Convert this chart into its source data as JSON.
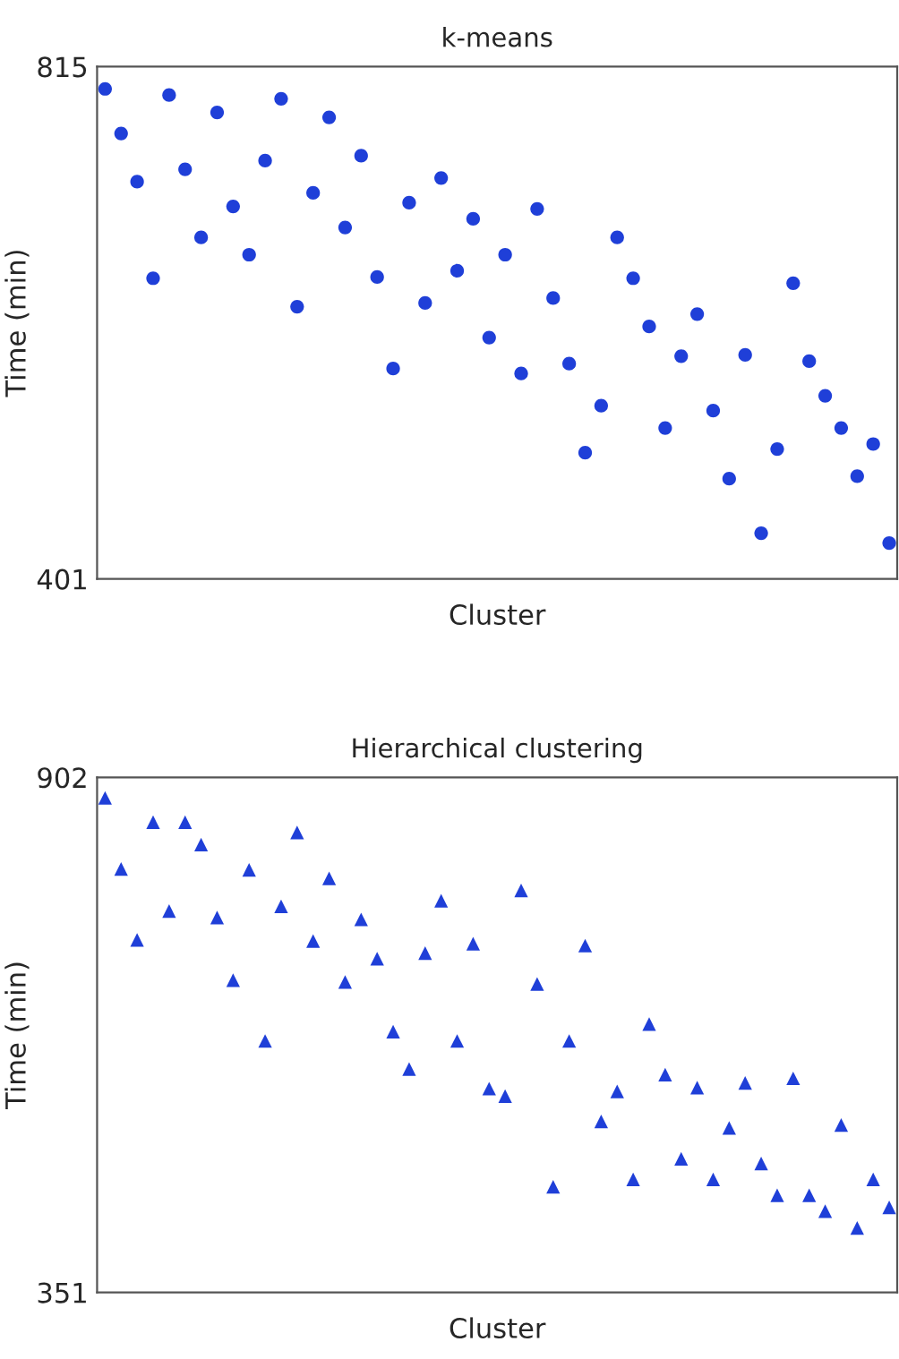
{
  "chart_data": [
    {
      "type": "scatter",
      "title": "k-means",
      "xlabel": "Cluster",
      "ylabel": "Time (min)",
      "ylim": [
        401,
        815
      ],
      "yticks": [
        401,
        815
      ],
      "tick_labels": "y",
      "grid": false,
      "legend": false,
      "marker": "circle",
      "categories": [
        null,
        null,
        null,
        null,
        null,
        null,
        null,
        null,
        null,
        null,
        null,
        null,
        null,
        null,
        null,
        null,
        null,
        null,
        null,
        null,
        null,
        null,
        null,
        null,
        null,
        null,
        null,
        null,
        null,
        null,
        null,
        null,
        null,
        null,
        null,
        null,
        null,
        null,
        null,
        null,
        null,
        null,
        null,
        null,
        null,
        null,
        null,
        null,
        null,
        null
      ],
      "series": [
        {
          "color": "#1f3fd8",
          "values": [
            797,
            761,
            722,
            644,
            792,
            732,
            677,
            778,
            702,
            663,
            739,
            789,
            621,
            713,
            774,
            685,
            743,
            645,
            571,
            705,
            624,
            725,
            650,
            692,
            596,
            663,
            567,
            700,
            628,
            575,
            503,
            541,
            677,
            644,
            605,
            523,
            581,
            615,
            537,
            482,
            582,
            438,
            506,
            640,
            577,
            549,
            523,
            484,
            510,
            430
          ]
        }
      ]
    },
    {
      "type": "scatter",
      "title": "Hierarchical clustering",
      "xlabel": "Cluster",
      "ylabel": "Time (min)",
      "ylim": [
        351,
        902
      ],
      "yticks": [
        351,
        902
      ],
      "tick_labels": "y",
      "grid": false,
      "legend": false,
      "marker": "triangle",
      "categories": [
        null,
        null,
        null,
        null,
        null,
        null,
        null,
        null,
        null,
        null,
        null,
        null,
        null,
        null,
        null,
        null,
        null,
        null,
        null,
        null,
        null,
        null,
        null,
        null,
        null,
        null,
        null,
        null,
        null,
        null,
        null,
        null,
        null,
        null,
        null,
        null,
        null,
        null,
        null,
        null,
        null,
        null,
        null,
        null,
        null,
        null,
        null,
        null,
        null,
        null
      ],
      "series": [
        {
          "color": "#1f3fd8",
          "values": [
            880,
            804,
            728,
            854,
            759,
            854,
            830,
            752,
            685,
            803,
            620,
            764,
            843,
            727,
            794,
            683,
            750,
            708,
            630,
            590,
            714,
            770,
            620,
            724,
            569,
            561,
            781,
            681,
            464,
            620,
            722,
            534,
            566,
            472,
            638,
            584,
            494,
            570,
            472,
            527,
            575,
            489,
            455,
            580,
            455,
            438,
            530,
            420,
            472,
            442
          ]
        }
      ]
    }
  ]
}
